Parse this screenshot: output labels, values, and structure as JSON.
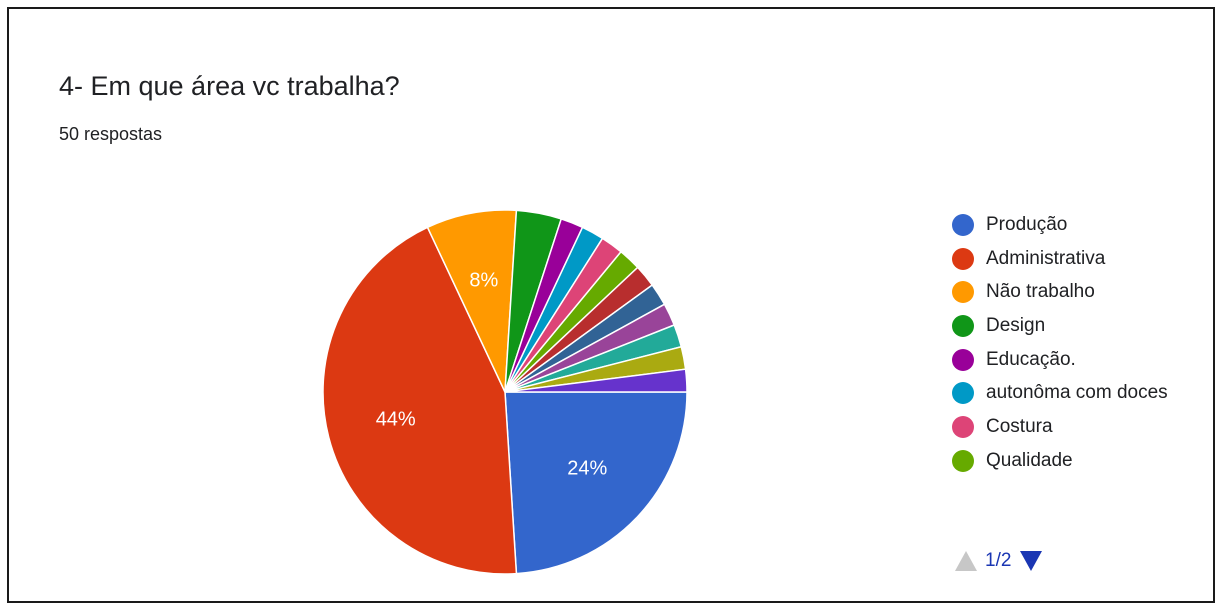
{
  "question": {
    "title": "4- Em que área vc trabalha?",
    "responses": "50 respostas"
  },
  "chart_data": {
    "type": "pie",
    "total_responses": 50,
    "slices": [
      {
        "name": "Produção",
        "value": 12,
        "percent": 24,
        "label": "24%",
        "color": "#3366cc"
      },
      {
        "name": "Administrativa",
        "value": 22,
        "percent": 44,
        "label": "44%",
        "color": "#dc3912"
      },
      {
        "name": "Não trabalho",
        "value": 4,
        "percent": 8,
        "label": "8%",
        "color": "#ff9900"
      },
      {
        "name": "Design",
        "value": 2,
        "percent": 4,
        "label": "",
        "color": "#109618"
      },
      {
        "name": "Educação.",
        "value": 1,
        "percent": 2,
        "label": "",
        "color": "#990099"
      },
      {
        "name": "autonôma com doces",
        "value": 1,
        "percent": 2,
        "label": "",
        "color": "#0099c6"
      },
      {
        "name": "Costura",
        "value": 1,
        "percent": 2,
        "label": "",
        "color": "#dd4477"
      },
      {
        "name": "Qualidade",
        "value": 1,
        "percent": 2,
        "label": "",
        "color": "#66aa00"
      },
      {
        "name": "",
        "value": 1,
        "percent": 2,
        "label": "",
        "color": "#b82e2e"
      },
      {
        "name": "",
        "value": 1,
        "percent": 2,
        "label": "",
        "color": "#316395"
      },
      {
        "name": "",
        "value": 1,
        "percent": 2,
        "label": "",
        "color": "#994499"
      },
      {
        "name": "",
        "value": 1,
        "percent": 2,
        "label": "",
        "color": "#22aa99"
      },
      {
        "name": "",
        "value": 1,
        "percent": 2,
        "label": "",
        "color": "#aaaa11"
      },
      {
        "name": "",
        "value": 1,
        "percent": 2,
        "label": "",
        "color": "#6633cc"
      }
    ],
    "legend_placement": "right",
    "start_angle": "right",
    "direction": "clockwise"
  },
  "legend": {
    "items": [
      {
        "label": "Produção",
        "color": "#3366cc"
      },
      {
        "label": "Administrativa",
        "color": "#dc3912"
      },
      {
        "label": "Não trabalho",
        "color": "#ff9900"
      },
      {
        "label": "Design",
        "color": "#109618"
      },
      {
        "label": "Educação.",
        "color": "#990099"
      },
      {
        "label": "autonôma com doces",
        "color": "#0099c6"
      },
      {
        "label": "Costura",
        "color": "#dd4477"
      },
      {
        "label": "Qualidade",
        "color": "#66aa00"
      }
    ],
    "pager": {
      "text": "1/2",
      "up_icon": "triangle-up-icon",
      "down_icon": "triangle-down-icon"
    }
  }
}
